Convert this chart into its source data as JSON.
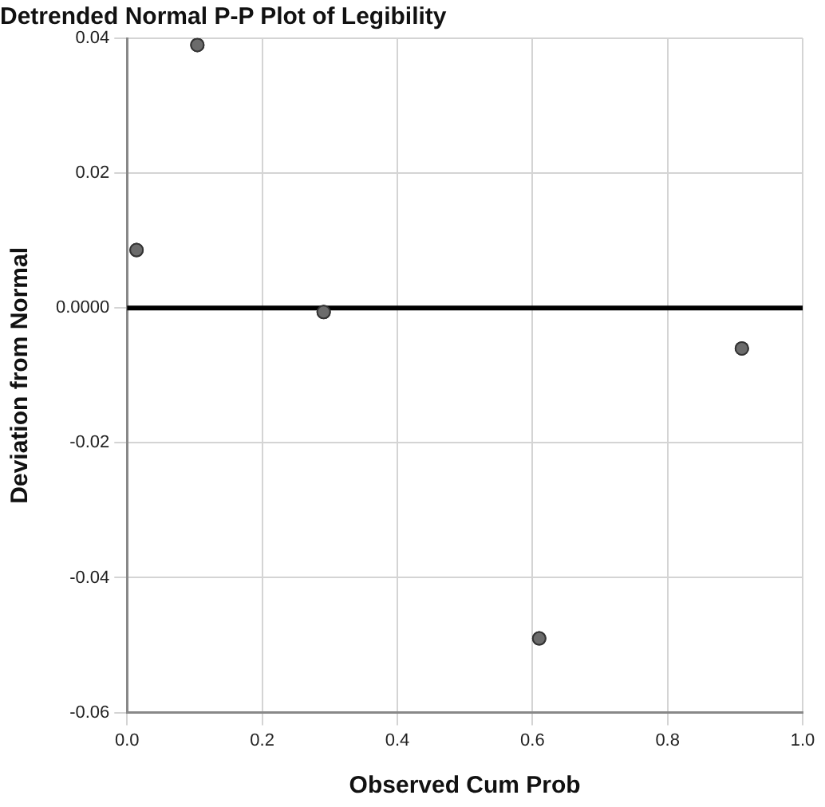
{
  "chart_data": {
    "type": "scatter",
    "title": "Detrended Normal P-P Plot of Legibility",
    "xlabel": "Observed Cum Prob",
    "ylabel": "Deviation from Normal",
    "x": [
      0.014,
      0.104,
      0.291,
      0.61,
      0.91
    ],
    "values": [
      0.0086,
      0.039,
      -0.0006,
      -0.049,
      -0.006
    ],
    "color": "#6b6b6b",
    "marker": "circle",
    "xlim": [
      0,
      1
    ],
    "xticks": [
      {
        "value": 0,
        "label": "0.0"
      },
      {
        "value": 0.2,
        "label": "0.2"
      },
      {
        "value": 0.4,
        "label": "0.4"
      },
      {
        "value": 0.6,
        "label": "0.6"
      },
      {
        "value": 0.8,
        "label": "0.8"
      },
      {
        "value": 1,
        "label": "1.0"
      }
    ],
    "ylim": [
      -0.06,
      0.04
    ],
    "yticks": [
      {
        "value": -0.06,
        "label": "-0.06"
      },
      {
        "value": -0.04,
        "label": "-0.04"
      },
      {
        "value": -0.02,
        "label": "-0.02"
      },
      {
        "value": 0,
        "label": "0.0000"
      },
      {
        "value": 0.02,
        "label": "0.02"
      },
      {
        "value": 0.04,
        "label": "0.04"
      }
    ],
    "ref_lines": [
      {
        "axis": "y",
        "value": 0,
        "color": "#000000"
      }
    ],
    "grid": true,
    "legend": false
  }
}
